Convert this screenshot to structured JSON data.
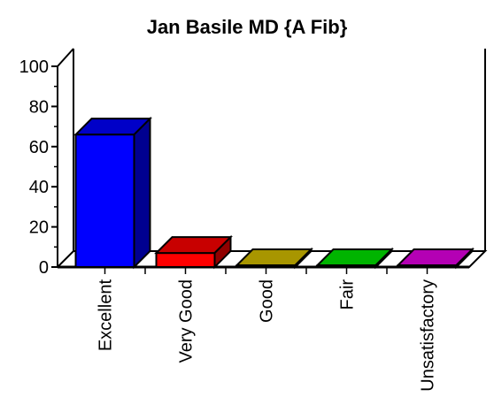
{
  "chart_data": {
    "type": "bar",
    "title": "Jan Basile MD {A Fib}",
    "xlabel": "",
    "ylabel": "",
    "categories": [
      "Excellent",
      "Very Good",
      "Good",
      "Fair",
      "Unsatisfactory"
    ],
    "values": [
      66,
      7,
      0,
      0,
      0
    ],
    "ylim": [
      0,
      100
    ],
    "yticks": [
      "0",
      "20",
      "40",
      "60",
      "80",
      "100"
    ],
    "grid": false,
    "style": "3d-bar",
    "colors": {
      "Excellent": {
        "front": "#0000ff",
        "top": "#0000c8",
        "side": "#000090"
      },
      "Very Good": {
        "front": "#ff0000",
        "top": "#c80000",
        "side": "#900000"
      },
      "Good": {
        "front": "#c8b400",
        "top": "#a89600",
        "side": "#807000"
      },
      "Fair": {
        "front": "#00c800",
        "top": "#00b400",
        "side": "#008c00"
      },
      "Unsatisfactory": {
        "front": "#c800c8",
        "top": "#b400b4",
        "side": "#8c008c"
      }
    }
  }
}
